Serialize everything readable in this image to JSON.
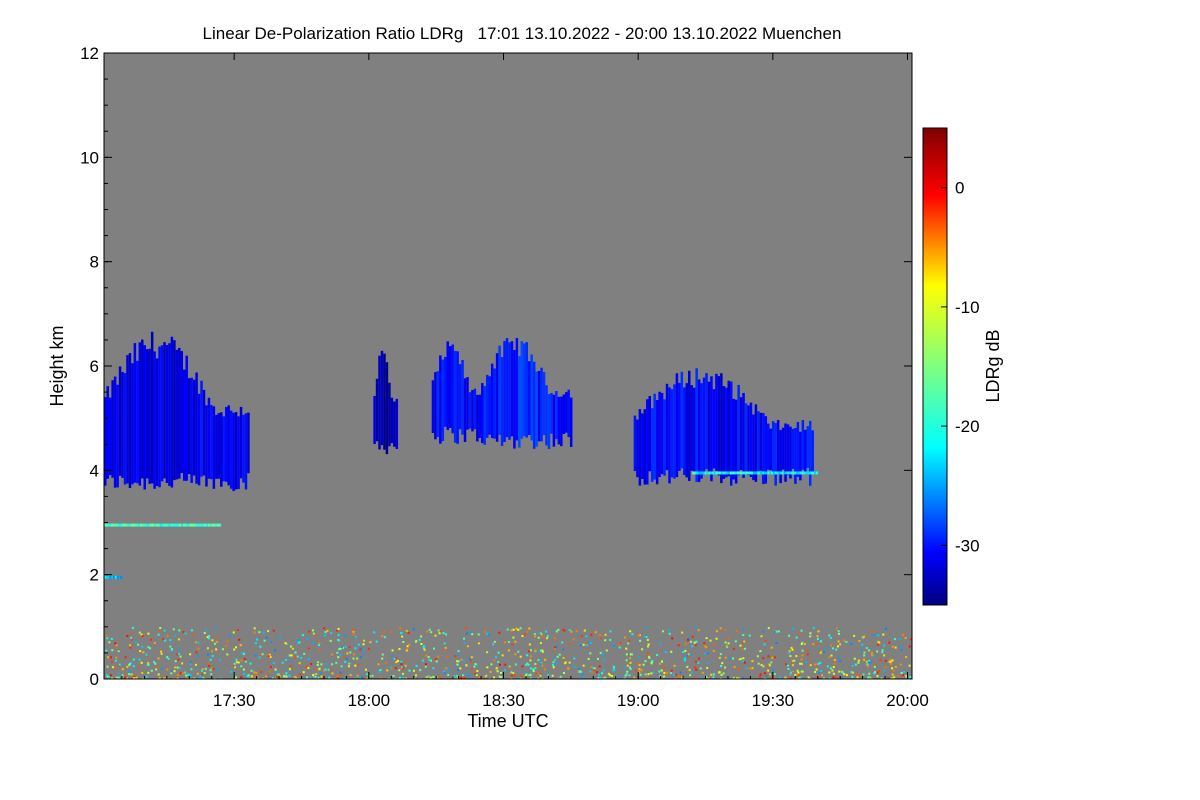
{
  "chart_data": {
    "type": "heatmap",
    "title": "Linear De-Polarization Ratio LDRg   17:01 13.10.2022 - 20:00 13.10.2022 Muenchen",
    "xlabel": "Time UTC",
    "ylabel": "Height km",
    "x_range_minutes": [
      1021,
      1201
    ],
    "y_range_km": [
      0,
      12
    ],
    "x_ticks": [
      {
        "minute": 1050,
        "label": "17:30"
      },
      {
        "minute": 1080,
        "label": "18:00"
      },
      {
        "minute": 1110,
        "label": "18:30"
      },
      {
        "minute": 1140,
        "label": "19:00"
      },
      {
        "minute": 1170,
        "label": "19:30"
      },
      {
        "minute": 1200,
        "label": "20:00"
      }
    ],
    "y_ticks": [
      {
        "value": 0,
        "label": "0"
      },
      {
        "value": 2,
        "label": "2"
      },
      {
        "value": 4,
        "label": "4"
      },
      {
        "value": 6,
        "label": "6"
      },
      {
        "value": 8,
        "label": "8"
      },
      {
        "value": 10,
        "label": "10"
      },
      {
        "value": 12,
        "label": "12"
      }
    ],
    "colorbar": {
      "label": "LDRg dB",
      "range": [
        -35,
        5
      ],
      "ticks": [
        {
          "value": 0,
          "label": "0"
        },
        {
          "value": -10,
          "label": "-10"
        },
        {
          "value": -20,
          "label": "-20"
        },
        {
          "value": -30,
          "label": "-30"
        }
      ],
      "colors": [
        "#00007f",
        "#0000ff",
        "#007fff",
        "#00ffff",
        "#7fff7f",
        "#ffff00",
        "#ff7f00",
        "#ff0000",
        "#7f0000"
      ]
    },
    "background_color": "#808080",
    "cloud_layers": [
      {
        "name": "cirrus-1",
        "t_start": 1021,
        "t_end": 1053,
        "base_km": 3.6,
        "top_km": 6.7,
        "ldr_db": -31
      },
      {
        "name": "cirrus-2",
        "t_start": 1081,
        "t_end": 1086,
        "base_km": 4.3,
        "top_km": 6.4,
        "ldr_db": -33
      },
      {
        "name": "cirrus-3",
        "t_start": 1094,
        "t_end": 1105,
        "base_km": 4.5,
        "top_km": 6.5,
        "ldr_db": -30
      },
      {
        "name": "cirrus-4",
        "t_start": 1105,
        "t_end": 1125,
        "base_km": 4.4,
        "top_km": 6.6,
        "ldr_db": -29
      },
      {
        "name": "cirrus-5",
        "t_start": 1139,
        "t_end": 1179,
        "base_km": 3.7,
        "top_km": 6.0,
        "ldr_db": -30
      }
    ],
    "thin_layers": [
      {
        "t_start": 1021,
        "t_end": 1047,
        "height_km": 2.95,
        "ldr_db": -18
      },
      {
        "t_start": 1152,
        "t_end": 1180,
        "height_km": 3.95,
        "ldr_db": -20
      },
      {
        "t_start": 1021,
        "t_end": 1025,
        "height_km": 1.95,
        "ldr_db": -22
      }
    ],
    "noise_layer": {
      "base_km": 0,
      "top_km": 1.0,
      "ldr_range_db": [
        -25,
        0
      ]
    }
  }
}
